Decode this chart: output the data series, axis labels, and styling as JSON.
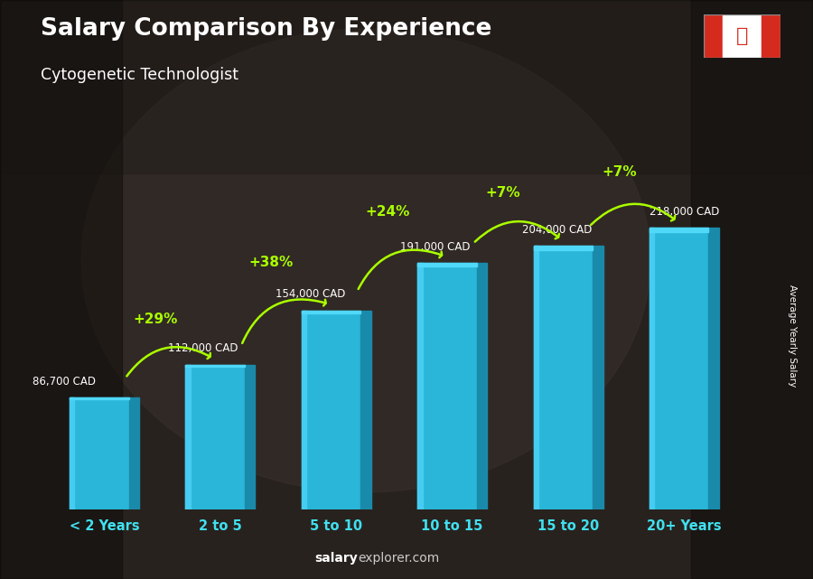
{
  "categories": [
    "< 2 Years",
    "2 to 5",
    "5 to 10",
    "10 to 15",
    "15 to 20",
    "20+ Years"
  ],
  "values": [
    86700,
    112000,
    154000,
    191000,
    204000,
    218000
  ],
  "value_labels": [
    "86,700 CAD",
    "112,000 CAD",
    "154,000 CAD",
    "191,000 CAD",
    "204,000 CAD",
    "218,000 CAD"
  ],
  "pct_changes": [
    "+29%",
    "+38%",
    "+24%",
    "+7%",
    "+7%"
  ],
  "bar_color_main": "#29b6d8",
  "bar_color_left": "#45ccf0",
  "bar_color_right": "#1a8aaa",
  "bar_color_top_face": "#20a8c8",
  "title": "Salary Comparison By Experience",
  "subtitle": "Cytogenetic Technologist",
  "ylabel": "Average Yearly Salary",
  "footer_normal": "explorer.com",
  "footer_bold": "salary",
  "title_color": "#ffffff",
  "subtitle_color": "#ffffff",
  "category_color": "#40e0f0",
  "value_color": "#ffffff",
  "pct_color": "#aaff00",
  "arrow_color": "#aaff00",
  "footer_bold_color": "#ffffff",
  "footer_normal_color": "#cccccc",
  "bg_color": "#3a3030",
  "ylim_max": 260000,
  "bar_width": 0.6,
  "figsize": [
    9.0,
    6.41
  ],
  "dpi": 100
}
